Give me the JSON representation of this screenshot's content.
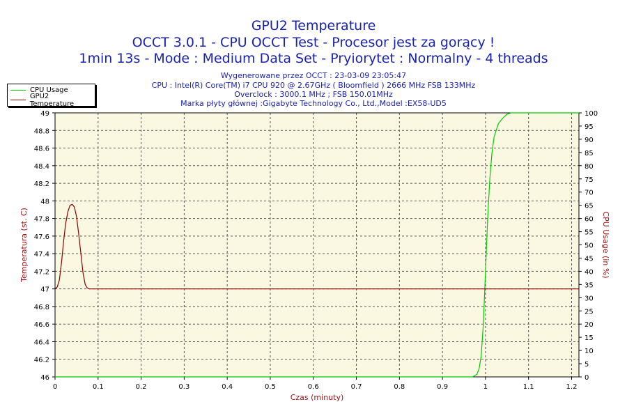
{
  "chart_data": {
    "type": "line",
    "title": "GPU2 Temperature",
    "subtitle": "OCCT 3.0.1 - CPU OCCT Test - Procesor jest za gorący !",
    "subtitle2": "1min 13s - Mode : Medium Data Set - Pryiorytet : Normalny - 4 threads",
    "info_lines": [
      "Wygenerowane przez OCCT : 23-03-09 23:05:47",
      "CPU : Intel(R) Core(TM) i7 CPU 920 @ 2.67GHz ( Bloomfield ) 2666 MHz FSB 133MHz",
      "Overclock : 3000.1 MHz ; FSB 150.01MHz",
      "Marka płyty głównej :Gigabyte Technology Co., Ltd.,Model :EX58-UD5"
    ],
    "xlabel": "Czas (minuty)",
    "ylabel_left": "Temperatura (st. C)",
    "ylabel_right": "CPU Usage (in %)",
    "xlim": [
      0,
      1.217
    ],
    "ylim_left": [
      46,
      49
    ],
    "ylim_right": [
      0,
      100
    ],
    "x_ticks": [
      "0",
      "0.1",
      "0.2",
      "0.3",
      "0.4",
      "0.5",
      "0.6",
      "0.7",
      "0.8",
      "0.9",
      "1",
      "1.1",
      "1.2"
    ],
    "y_left_ticks": [
      "46",
      "46.2",
      "46.4",
      "46.6",
      "46.8",
      "47",
      "47.2",
      "47.4",
      "47.6",
      "47.8",
      "48",
      "48.2",
      "48.4",
      "48.6",
      "48.8",
      "49"
    ],
    "y_right_ticks": [
      "0",
      "5",
      "10",
      "15",
      "20",
      "25",
      "30",
      "35",
      "40",
      "45",
      "50",
      "55",
      "60",
      "65",
      "70",
      "75",
      "80",
      "85",
      "90",
      "95",
      "100"
    ],
    "grid": true,
    "legend_placement": "top-left",
    "series": [
      {
        "name": "CPU Usage",
        "axis": "right",
        "color": "#00cc00",
        "x": [
          0,
          0.97,
          0.98,
          0.985,
          0.99,
          0.995,
          1.0,
          1.005,
          1.01,
          1.015,
          1.02,
          1.03,
          1.04,
          1.05,
          1.06,
          1.217
        ],
        "values": [
          0,
          0,
          1,
          3,
          8,
          20,
          40,
          60,
          75,
          85,
          91,
          96,
          98,
          99.5,
          100,
          100
        ]
      },
      {
        "name": "GPU2 Temperature",
        "axis": "left",
        "color": "#8b0000",
        "x": [
          0,
          0.005,
          0.01,
          0.015,
          0.02,
          0.025,
          0.03,
          0.035,
          0.04,
          0.045,
          0.05,
          0.055,
          0.06,
          0.065,
          0.07,
          0.075,
          0.08,
          0.09,
          1.217
        ],
        "values": [
          47,
          47.02,
          47.1,
          47.3,
          47.55,
          47.75,
          47.88,
          47.95,
          47.96,
          47.93,
          47.82,
          47.62,
          47.4,
          47.18,
          47.05,
          47.01,
          47,
          47,
          47
        ]
      }
    ]
  },
  "colors": {
    "plot_bg": "#fbf8e2",
    "grid": "#555555",
    "title": "#1a22b0",
    "axis_label": "#a01010"
  }
}
